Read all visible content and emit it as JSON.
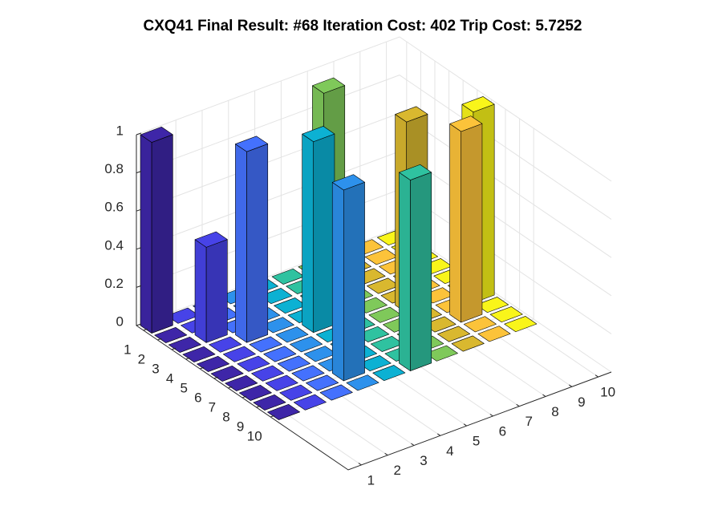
{
  "chart_data": {
    "type": "bar3",
    "title": "CXQ41 Final Result: #68 Iteration Cost: 402 Trip Cost: 5.7252",
    "z": [
      [
        1,
        0,
        0,
        0,
        0,
        0,
        0,
        0,
        0,
        0
      ],
      [
        0,
        0,
        0,
        0,
        0,
        0,
        1,
        0,
        0,
        0
      ],
      [
        0,
        0.5,
        0,
        0,
        0,
        0,
        0,
        0,
        0,
        0
      ],
      [
        0,
        0,
        1,
        0,
        0,
        0,
        0,
        0,
        0,
        0
      ],
      [
        0,
        0,
        0,
        0,
        1,
        0,
        0,
        0,
        0,
        0
      ],
      [
        0,
        0,
        0,
        0,
        0,
        0,
        0,
        1,
        0,
        0
      ],
      [
        0,
        0,
        0,
        0,
        0,
        0,
        0,
        0,
        0,
        1
      ],
      [
        0,
        0,
        0,
        0,
        0,
        0,
        0,
        0,
        1,
        0
      ],
      [
        0,
        0,
        0,
        1,
        0,
        0,
        0,
        0,
        0,
        0
      ],
      [
        0,
        0,
        0,
        0,
        0,
        1,
        0,
        0,
        0,
        0
      ]
    ],
    "colors": [
      "#3e26a8",
      "#4743e8",
      "#4471fd",
      "#2d91ec",
      "#0cb1d3",
      "#2fc2a0",
      "#7fc95a",
      "#d9b82f",
      "#fcc33a",
      "#f9f51a"
    ],
    "xlim": [
      0.5,
      10.5
    ],
    "ylim": [
      0.5,
      15.5
    ],
    "zlim": [
      0,
      1
    ],
    "xticks": [
      1,
      2,
      3,
      4,
      5,
      6,
      7,
      8,
      9,
      10
    ],
    "yticks": [
      1,
      2,
      3,
      4,
      5,
      6,
      7,
      8,
      9,
      10
    ],
    "zticks": [
      0,
      0.2,
      0.4,
      0.6,
      0.8,
      1
    ],
    "grid": true
  }
}
